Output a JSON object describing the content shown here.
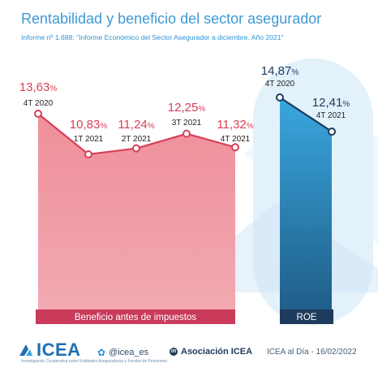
{
  "header": {
    "title": "Rentabilidad y beneficio del sector asegurador",
    "subtitle": "Informe nº 1.688: \"Informe Económico del Sector Asegurador a diciembre. Año 2021\""
  },
  "colors": {
    "benefit_fill": "#ef9aa3",
    "benefit_line": "#d6405a",
    "benefit_label_bar": "#c93a5b",
    "roe_fill_top": "#3aa7df",
    "roe_fill_bottom": "#1f5f89",
    "roe_label_bar": "#1d3b5c",
    "title": "#3d9ad6"
  },
  "chart_data": [
    {
      "type": "area",
      "name": "Beneficio antes de impuestos",
      "categories": [
        "4T 2020",
        "1T 2021",
        "2T 2021",
        "3T 2021",
        "4T 2021"
      ],
      "values": [
        13.63,
        10.83,
        11.24,
        12.25,
        11.32
      ],
      "value_labels": [
        "13,63",
        "10,83",
        "11,24",
        "12,25",
        "11,32"
      ],
      "unit": "%",
      "label": "Beneficio antes de impuestos"
    },
    {
      "type": "area",
      "name": "ROE",
      "categories": [
        "4T 2020",
        "4T 2021"
      ],
      "values": [
        14.87,
        12.41
      ],
      "value_labels": [
        "14,87",
        "12,41"
      ],
      "unit": "%",
      "label": "ROE"
    }
  ],
  "footer": {
    "brand": "ICEA",
    "brand_tagline": "Investigación Cooperativa entre Entidades Aseguradoras y Fondos de Pensiones",
    "twitter": "@icea_es",
    "linkedin": "Asociación ICEA",
    "date_stamp": "ICEA al Día - 16/02/2022"
  }
}
